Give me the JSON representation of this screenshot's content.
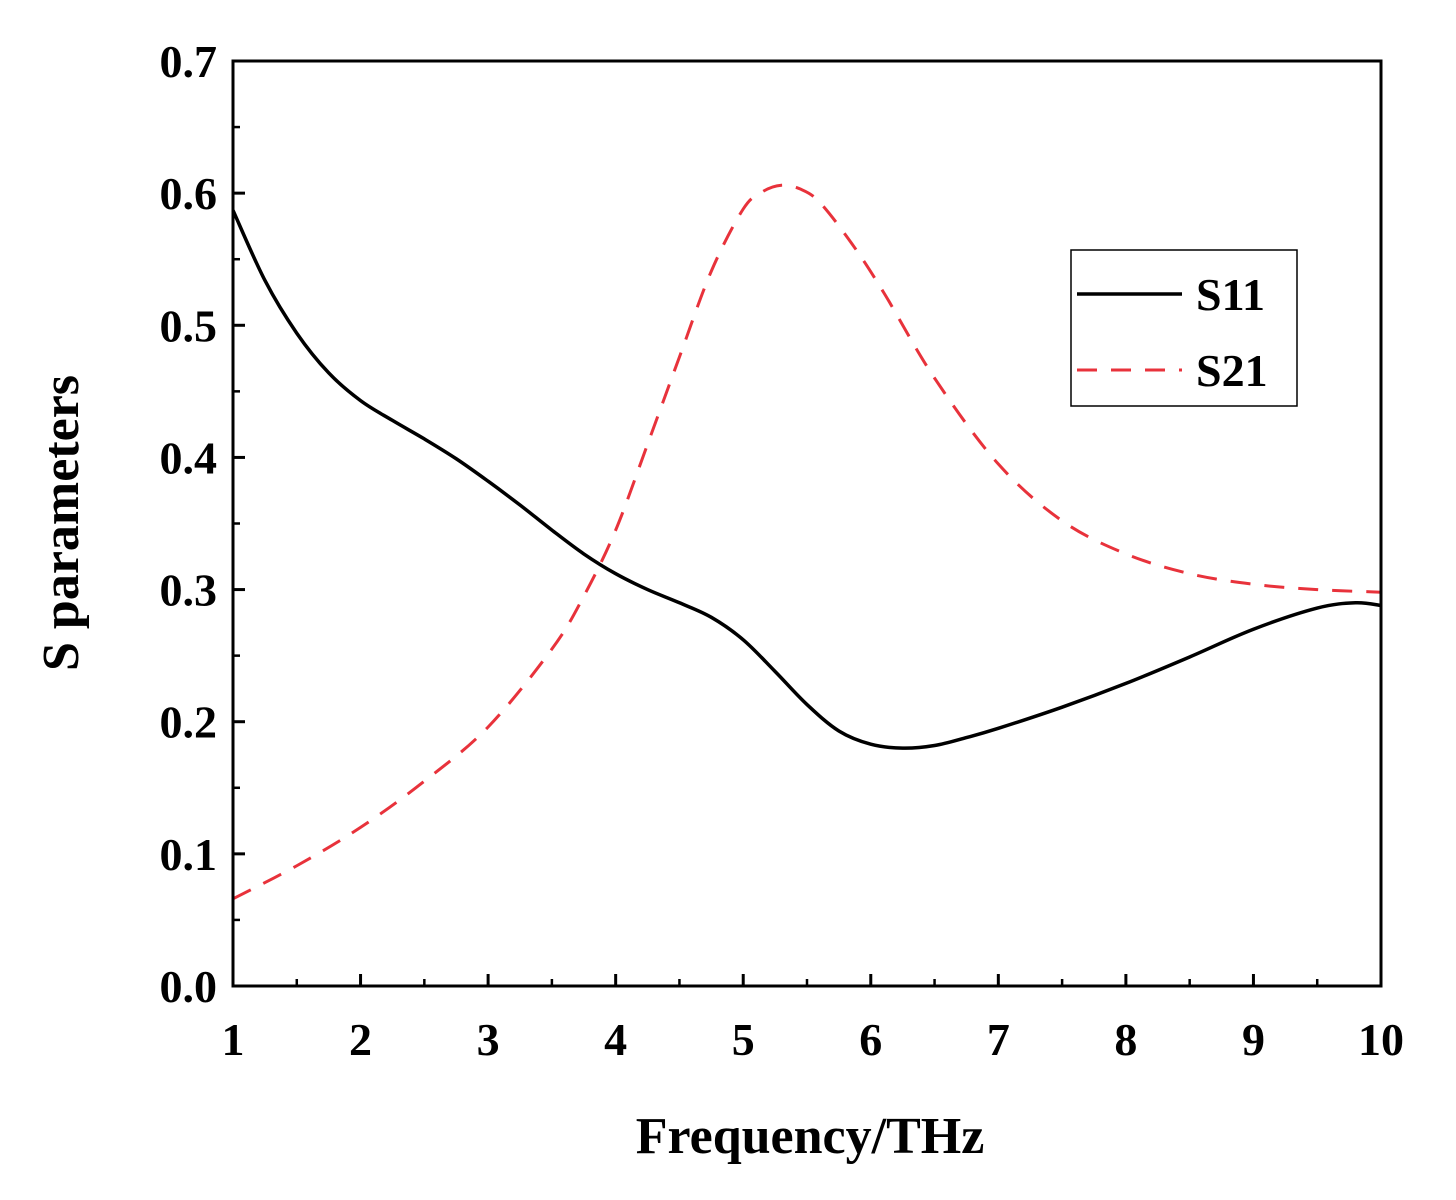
{
  "chart_data": {
    "type": "line",
    "title": "",
    "xlabel": "Frequency/THz",
    "ylabel": "S parameters",
    "xlim": [
      1,
      10
    ],
    "ylim": [
      0,
      0.7
    ],
    "xticks": [
      1,
      2,
      3,
      4,
      5,
      6,
      7,
      8,
      9,
      10
    ],
    "yticks": [
      0.0,
      0.1,
      0.2,
      0.3,
      0.4,
      0.5,
      0.6,
      0.7
    ],
    "xtick_labels": [
      "1",
      "2",
      "3",
      "4",
      "5",
      "6",
      "7",
      "8",
      "9",
      "10"
    ],
    "ytick_labels": [
      "0.0",
      "0.1",
      "0.2",
      "0.3",
      "0.4",
      "0.5",
      "0.6",
      "0.7"
    ],
    "grid": false,
    "legend_position": "right",
    "series": [
      {
        "name": "S11",
        "color": "#000000",
        "dash": "solid",
        "x": [
          1.0,
          1.25,
          1.5,
          1.75,
          2.0,
          2.25,
          2.5,
          2.75,
          3.0,
          3.25,
          3.5,
          3.75,
          4.0,
          4.25,
          4.5,
          4.75,
          5.0,
          5.25,
          5.5,
          5.75,
          6.0,
          6.25,
          6.5,
          6.75,
          7.0,
          7.5,
          8.0,
          8.5,
          9.0,
          9.5,
          9.8,
          10.0
        ],
        "values": [
          0.587,
          0.534,
          0.494,
          0.464,
          0.443,
          0.428,
          0.414,
          0.399,
          0.382,
          0.364,
          0.345,
          0.327,
          0.312,
          0.3,
          0.29,
          0.279,
          0.262,
          0.238,
          0.213,
          0.193,
          0.183,
          0.18,
          0.182,
          0.188,
          0.195,
          0.211,
          0.229,
          0.249,
          0.27,
          0.286,
          0.29,
          0.288
        ]
      },
      {
        "name": "S21",
        "color": "#e8323b",
        "dash": "dashed",
        "x": [
          1.0,
          1.5,
          2.0,
          2.5,
          3.0,
          3.5,
          3.75,
          4.0,
          4.25,
          4.5,
          4.75,
          5.0,
          5.15,
          5.3,
          5.45,
          5.6,
          5.85,
          6.1,
          6.5,
          7.0,
          7.5,
          8.0,
          8.5,
          9.0,
          9.5,
          10.0
        ],
        "values": [
          0.066,
          0.091,
          0.12,
          0.155,
          0.196,
          0.255,
          0.295,
          0.345,
          0.41,
          0.476,
          0.541,
          0.588,
          0.601,
          0.606,
          0.603,
          0.593,
          0.562,
          0.525,
          0.46,
          0.395,
          0.352,
          0.327,
          0.312,
          0.304,
          0.3,
          0.298
        ]
      }
    ]
  }
}
